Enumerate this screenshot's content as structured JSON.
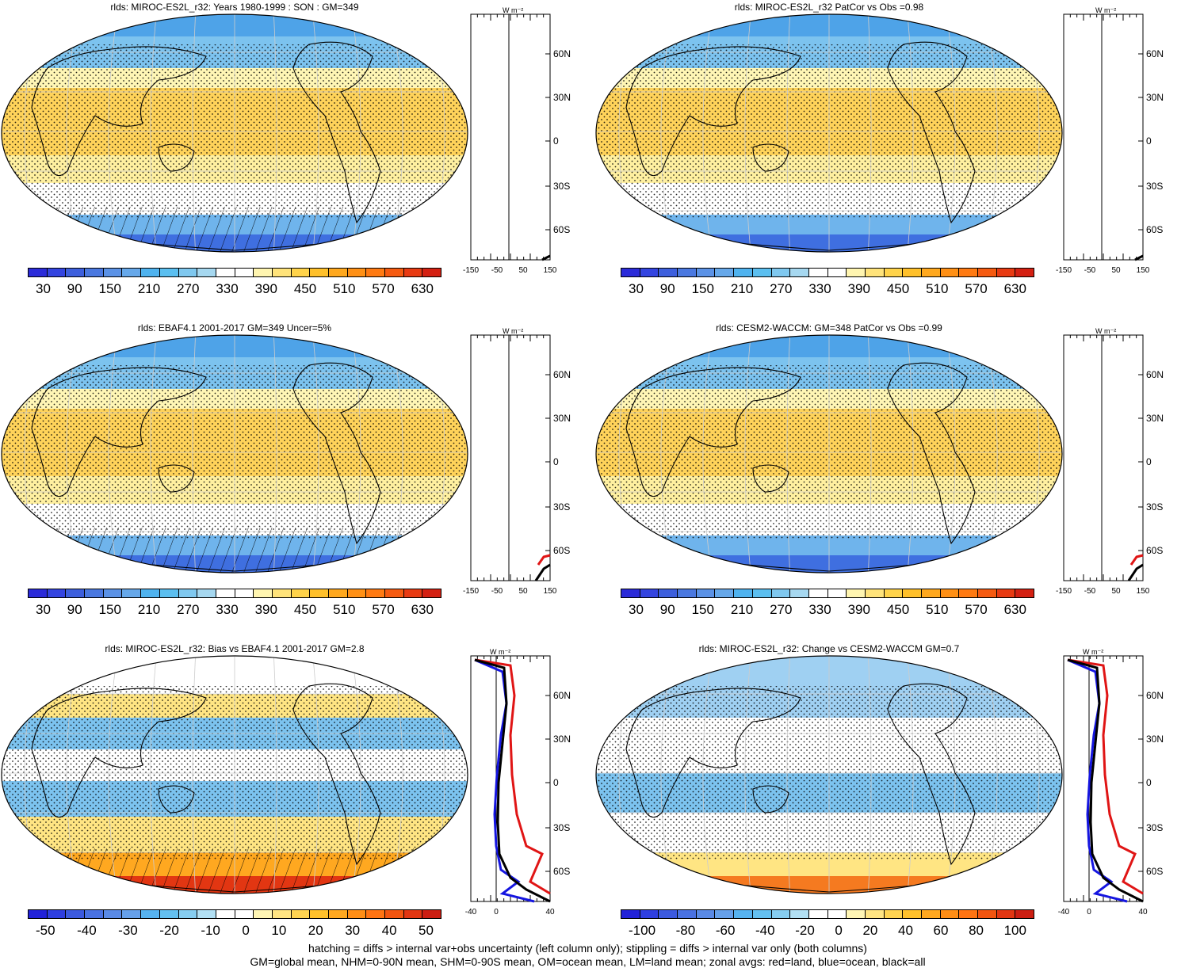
{
  "panels": [
    {
      "id": "p1",
      "title": "rlds: MIROC-ES2L_r32: Years 1980-1999 : SON : GM=349",
      "colorbar_labels": [
        "30",
        "90",
        "150",
        "210",
        "270",
        "330",
        "390",
        "450",
        "510",
        "570",
        "630"
      ],
      "palette": "abs",
      "zonal_xlabels": [
        "-150",
        "-50",
        "50",
        "150"
      ],
      "lat_labels": [
        "60N",
        "30N",
        "0",
        "30S",
        "60S"
      ],
      "zonal_unit": "W m⁻²",
      "hatching": true
    },
    {
      "id": "p2",
      "title": "rlds: MIROC-ES2L_r32 PatCor vs Obs =0.98",
      "colorbar_labels": [
        "30",
        "90",
        "150",
        "210",
        "270",
        "330",
        "390",
        "450",
        "510",
        "570",
        "630"
      ],
      "palette": "abs",
      "zonal_xlabels": [
        "-150",
        "-50",
        "50",
        "150"
      ],
      "lat_labels": [
        "60N",
        "30N",
        "0",
        "30S",
        "60S"
      ],
      "zonal_unit": "W m⁻²",
      "hatching": false
    },
    {
      "id": "p3",
      "title": "rlds: EBAF4.1 2001-2017 GM=349 Uncer=5%",
      "colorbar_labels": [
        "30",
        "90",
        "150",
        "210",
        "270",
        "330",
        "390",
        "450",
        "510",
        "570",
        "630"
      ],
      "palette": "abs",
      "zonal_xlabels": [
        "-150",
        "-50",
        "50",
        "150"
      ],
      "lat_labels": [
        "60N",
        "30N",
        "0",
        "30S",
        "60S"
      ],
      "zonal_unit": "W m⁻²",
      "hatching": true
    },
    {
      "id": "p4",
      "title": "rlds: CESM2-WACCM: GM=348 PatCor vs Obs =0.99",
      "colorbar_labels": [
        "30",
        "90",
        "150",
        "210",
        "270",
        "330",
        "390",
        "450",
        "510",
        "570",
        "630"
      ],
      "palette": "abs",
      "zonal_xlabels": [
        "-150",
        "-50",
        "50",
        "150"
      ],
      "lat_labels": [
        "60N",
        "30N",
        "0",
        "30S",
        "60S"
      ],
      "zonal_unit": "W m⁻²",
      "hatching": false
    },
    {
      "id": "p5",
      "title": "rlds: MIROC-ES2L_r32: Bias vs EBAF4.1 2001-2017  GM=2.8",
      "colorbar_labels": [
        "-50",
        "-40",
        "-30",
        "-20",
        "-10",
        "0",
        "10",
        "20",
        "30",
        "40",
        "50"
      ],
      "palette": "diff",
      "zonal_xlabels": [
        "-40",
        "0",
        "40"
      ],
      "lat_labels": [
        "60N",
        "30N",
        "0",
        "30S",
        "60S"
      ],
      "zonal_unit": "W m⁻²",
      "hatching": true
    },
    {
      "id": "p6",
      "title": "rlds: MIROC-ES2L_r32: Change vs CESM2-WACCM GM=0.7",
      "colorbar_labels": [
        "-100",
        "-80",
        "-60",
        "-40",
        "-20",
        "0",
        "20",
        "40",
        "60",
        "80",
        "100"
      ],
      "palette": "diff",
      "zonal_xlabels": [
        "-40",
        "0",
        "40"
      ],
      "lat_labels": [
        "60N",
        "30N",
        "0",
        "30S",
        "60S"
      ],
      "zonal_unit": "W m⁻²",
      "hatching": false
    }
  ],
  "palettes": {
    "abs": [
      "#2b2bd9",
      "#3344e0",
      "#3d5fdd",
      "#4a78e0",
      "#5b92e6",
      "#66a8ea",
      "#4fb3ef",
      "#5bbff0",
      "#7fc8ef",
      "#a6d8f0",
      "#ffffff",
      "#ffffff",
      "#fff5b0",
      "#ffe37a",
      "#ffd34a",
      "#ffc02a",
      "#ffa81e",
      "#ff9015",
      "#ff7a12",
      "#f55a10",
      "#e83a12",
      "#d42012"
    ],
    "diff": [
      "#2222d8",
      "#2f3fe0",
      "#3c5adf",
      "#4a72e2",
      "#5a8ae6",
      "#66a0ea",
      "#57b3f0",
      "#64c0f0",
      "#86cdf0",
      "#b2e0f4",
      "#ffffff",
      "#ffffff",
      "#fff6b5",
      "#ffe583",
      "#ffd452",
      "#ffc12c",
      "#ffa820",
      "#ff8e16",
      "#ff7413",
      "#f25510",
      "#e23612",
      "#cc1e12"
    ]
  },
  "footer": {
    "line1": "hatching = diffs > internal var+obs uncertainty (left column only); stippling = diffs > internal var only (both columns)",
    "line2": "GM=global mean, NHM=0-90N mean, SHM=0-90S mean, OM=ocean mean, LM=land mean; zonal avgs: red=land, blue=ocean, black=all"
  }
}
